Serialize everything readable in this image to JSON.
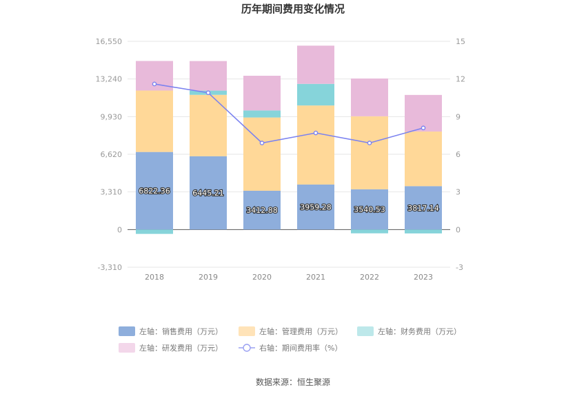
{
  "chart_data": {
    "type": "bar",
    "stacked": true,
    "title": "历年期间费用变化情况",
    "categories": [
      "2018",
      "2019",
      "2020",
      "2021",
      "2022",
      "2023"
    ],
    "left_axis": {
      "ticks": [
        "16,550",
        "13,240",
        "9,930",
        "6,620",
        "3,310",
        "0",
        "-3,310"
      ],
      "ylim": [
        -3310,
        16550
      ]
    },
    "right_axis": {
      "ticks": [
        "15",
        "12",
        "9",
        "6",
        "3",
        "0",
        "-3"
      ],
      "ylim": [
        -3,
        15
      ]
    },
    "series": [
      {
        "name": "左轴：销售费用（万元）",
        "axis": "left",
        "color": "#8eaedc",
        "values": [
          6822.36,
          6445.21,
          3412.88,
          3959.28,
          3540.53,
          3817.14
        ],
        "labels": [
          "6822.36",
          "6445.21",
          "3412.88",
          "3959.28",
          "3540.53",
          "3817.14"
        ]
      },
      {
        "name": "左轴：管理费用（万元）",
        "axis": "left",
        "color": "#ffd898",
        "values": [
          5400,
          5400,
          6440,
          6950,
          6420,
          4800
        ]
      },
      {
        "name": "左轴：财务费用（万元）",
        "axis": "left",
        "color": "#86d4da",
        "values": [
          -380,
          370,
          620,
          1900,
          -330,
          -340
        ]
      },
      {
        "name": "左轴：研发费用（万元）",
        "axis": "left",
        "color": "#e8bada",
        "values": [
          2600,
          2600,
          3050,
          3360,
          3320,
          3220
        ]
      }
    ],
    "line": {
      "name": "右轴：期间费用率（%）",
      "axis": "right",
      "color": "#7b82f0",
      "values": [
        11.6,
        10.9,
        6.9,
        7.7,
        6.9,
        8.1
      ]
    },
    "legend": {
      "items": [
        {
          "label": "左轴：销售费用（万元）",
          "color": "#8eaedc",
          "kind": "rect"
        },
        {
          "label": "左轴：管理费用（万元）",
          "color": "#ffe3b8",
          "kind": "rect"
        },
        {
          "label": "左轴：财务费用（万元）",
          "color": "#bde8ea",
          "kind": "rect"
        },
        {
          "label": "左轴：研发费用（万元）",
          "color": "#f3d7ea",
          "kind": "rect"
        },
        {
          "label": "右轴：期间费用率（%）",
          "color": "#9aa0f2",
          "kind": "line"
        }
      ]
    },
    "source": "数据来源：恒生聚源"
  }
}
